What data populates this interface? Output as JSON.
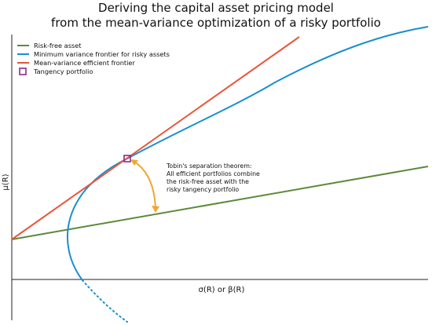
{
  "chart_data": {
    "type": "line",
    "title_lines": [
      "Deriving the capital asset pricing model",
      "from the mean-variance optimization of a risky portfolio"
    ],
    "xlabel": "σ(R) or β(R)",
    "ylabel": "μ(R)",
    "grid": false,
    "ticks": false,
    "legend_position": "top-left",
    "xlim": [
      0,
      1
    ],
    "ylim": [
      -0.3,
      1
    ],
    "series": [
      {
        "name": "Risk-free asset",
        "color": "#5b8a3a",
        "x": [
          0,
          1
        ],
        "y": [
          0.2,
          0.57
        ]
      },
      {
        "name": "Minimum variance frontier for risky assets",
        "color": "#1a8fcf",
        "x": [
          0.35,
          0.29,
          0.26,
          0.2,
          0.15,
          0.14,
          0.15,
          0.2,
          0.27,
          0.35,
          0.5,
          0.7,
          1.0
        ],
        "y": [
          0.62,
          0.58,
          0.55,
          0.48,
          0.33,
          0.2,
          0.12,
          -0.02,
          0.01,
          0.62,
          0.78,
          0.91,
          1.07
        ]
      },
      {
        "name": "Mean-variance efficient frontier",
        "color": "#e8563a",
        "x": [
          0,
          0.69
        ],
        "y": [
          0.2,
          1.22
        ]
      },
      {
        "name": "Tangency portfolio",
        "color": "#8b2a8e",
        "marker": "square",
        "x": [
          0.28
        ],
        "y": [
          0.61
        ]
      }
    ],
    "annotation": {
      "lines": [
        "Tobin's separation theorem:",
        "All efficient portfolios combine",
        "the risk-free asset with the",
        "risky tangency portfolio"
      ],
      "arrow_color": "#f0a830"
    }
  }
}
